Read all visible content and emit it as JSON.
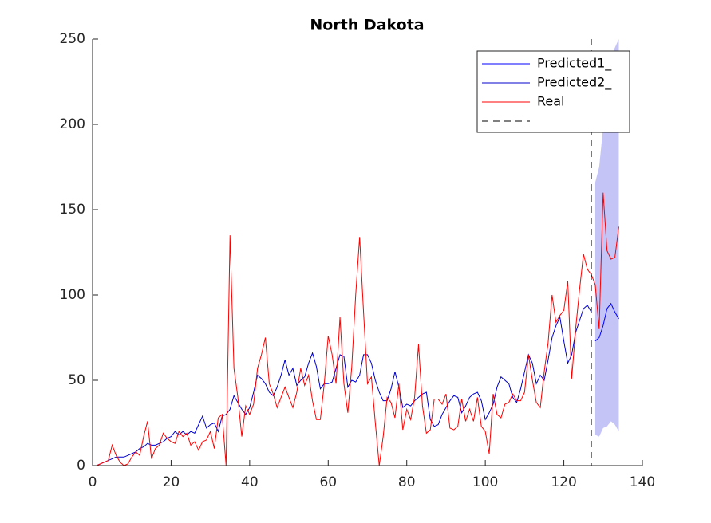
{
  "chart_data": {
    "type": "line",
    "title": "North Dakota",
    "xlim": [
      0,
      140
    ],
    "xticks": [
      0,
      20,
      40,
      60,
      80,
      100,
      120,
      140
    ],
    "ylim": [
      0,
      250
    ],
    "yticks": [
      0,
      50,
      100,
      150,
      200,
      250
    ],
    "legend": "upper right",
    "grid": false,
    "vline": 127,
    "band": {
      "color": "#c4c4f7",
      "x": [
        128,
        129,
        130,
        131,
        132,
        133,
        134
      ],
      "lower": [
        18,
        17,
        22,
        23,
        26,
        24,
        20
      ],
      "upper": [
        166,
        175,
        198,
        225,
        240,
        245,
        250
      ]
    },
    "series": [
      {
        "name": "Predicted1_",
        "color": "#0000ff",
        "x": [
          128,
          129,
          130,
          131,
          132,
          133,
          134
        ],
        "values": [
          73,
          75,
          82,
          92,
          95,
          90,
          86
        ]
      },
      {
        "name": "Predicted2_",
        "color": "#0000cd",
        "x": [
          1,
          2,
          3,
          4,
          5,
          6,
          7,
          8,
          9,
          10,
          11,
          12,
          13,
          14,
          15,
          16,
          17,
          18,
          19,
          20,
          21,
          22,
          23,
          24,
          25,
          26,
          27,
          28,
          29,
          30,
          31,
          32,
          33,
          34,
          35,
          36,
          37,
          38,
          39,
          40,
          41,
          42,
          43,
          44,
          45,
          46,
          47,
          48,
          49,
          50,
          51,
          52,
          53,
          54,
          55,
          56,
          57,
          58,
          59,
          60,
          61,
          62,
          63,
          64,
          65,
          66,
          67,
          68,
          69,
          70,
          71,
          72,
          73,
          74,
          75,
          76,
          77,
          78,
          79,
          80,
          81,
          82,
          83,
          84,
          85,
          86,
          87,
          88,
          89,
          90,
          91,
          92,
          93,
          94,
          95,
          96,
          97,
          98,
          99,
          100,
          101,
          102,
          103,
          104,
          105,
          106,
          107,
          108,
          109,
          110,
          111,
          112,
          113,
          114,
          115,
          116,
          117,
          118,
          119,
          120,
          121,
          122,
          123,
          124,
          125,
          126,
          127
        ],
        "values": [
          0,
          1,
          2,
          3,
          4,
          5,
          5,
          5,
          6,
          7,
          8,
          10,
          11,
          13,
          12,
          12,
          13,
          14,
          16,
          17,
          20,
          18,
          20,
          18,
          20,
          19,
          24,
          29,
          22,
          24,
          25,
          20,
          29,
          30,
          33,
          41,
          37,
          33,
          30,
          34,
          43,
          53,
          51,
          48,
          43,
          41,
          46,
          53,
          62,
          53,
          57,
          47,
          50,
          52,
          60,
          66,
          58,
          45,
          48,
          48,
          49,
          57,
          65,
          64,
          46,
          50,
          49,
          53,
          65,
          65,
          60,
          50,
          43,
          38,
          38,
          45,
          55,
          46,
          34,
          36,
          35,
          38,
          40,
          42,
          43,
          27,
          23,
          24,
          30,
          34,
          38,
          41,
          40,
          31,
          35,
          40,
          42,
          43,
          38,
          27,
          31,
          36,
          46,
          52,
          50,
          48,
          40,
          37,
          45,
          55,
          65,
          60,
          48,
          53,
          50,
          62,
          75,
          82,
          87,
          73,
          60,
          65,
          78,
          85,
          92,
          94,
          90
        ]
      },
      {
        "name": "Real",
        "color": "#ff0000",
        "x": [
          1,
          2,
          3,
          4,
          5,
          6,
          7,
          8,
          9,
          10,
          11,
          12,
          13,
          14,
          15,
          16,
          17,
          18,
          19,
          20,
          21,
          22,
          23,
          24,
          25,
          26,
          27,
          28,
          29,
          30,
          31,
          32,
          33,
          34,
          35,
          36,
          37,
          38,
          39,
          40,
          41,
          42,
          43,
          44,
          45,
          46,
          47,
          48,
          49,
          50,
          51,
          52,
          53,
          54,
          55,
          56,
          57,
          58,
          59,
          60,
          61,
          62,
          63,
          64,
          65,
          66,
          67,
          68,
          69,
          70,
          71,
          72,
          73,
          74,
          75,
          76,
          77,
          78,
          79,
          80,
          81,
          82,
          83,
          84,
          85,
          86,
          87,
          88,
          89,
          90,
          91,
          92,
          93,
          94,
          95,
          96,
          97,
          98,
          99,
          100,
          101,
          102,
          103,
          104,
          105,
          106,
          107,
          108,
          109,
          110,
          111,
          112,
          113,
          114,
          115,
          116,
          117,
          118,
          119,
          120,
          121,
          122,
          123,
          124,
          125,
          126,
          127,
          128,
          129,
          130,
          131,
          132,
          133,
          134
        ],
        "values": [
          0,
          1,
          2,
          3,
          12,
          6,
          2,
          0,
          1,
          5,
          8,
          6,
          17,
          26,
          4,
          10,
          12,
          19,
          16,
          14,
          13,
          20,
          17,
          19,
          12,
          14,
          9,
          14,
          15,
          20,
          10,
          28,
          30,
          0,
          135,
          57,
          40,
          17,
          35,
          30,
          36,
          57,
          65,
          75,
          48,
          42,
          34,
          40,
          46,
          40,
          34,
          43,
          57,
          47,
          53,
          38,
          27,
          27,
          48,
          76,
          65,
          48,
          87,
          48,
          31,
          58,
          100,
          134,
          90,
          48,
          52,
          25,
          0,
          17,
          40,
          37,
          28,
          48,
          21,
          33,
          27,
          40,
          71,
          35,
          19,
          21,
          39,
          39,
          36,
          42,
          22,
          21,
          23,
          39,
          26,
          33,
          26,
          40,
          23,
          20,
          7,
          42,
          30,
          28,
          36,
          37,
          42,
          38,
          38,
          43,
          65,
          50,
          37,
          34,
          55,
          72,
          100,
          84,
          88,
          91,
          108,
          51,
          80,
          103,
          124,
          115,
          112,
          106,
          80,
          160,
          126,
          121,
          122,
          140
        ]
      }
    ]
  }
}
